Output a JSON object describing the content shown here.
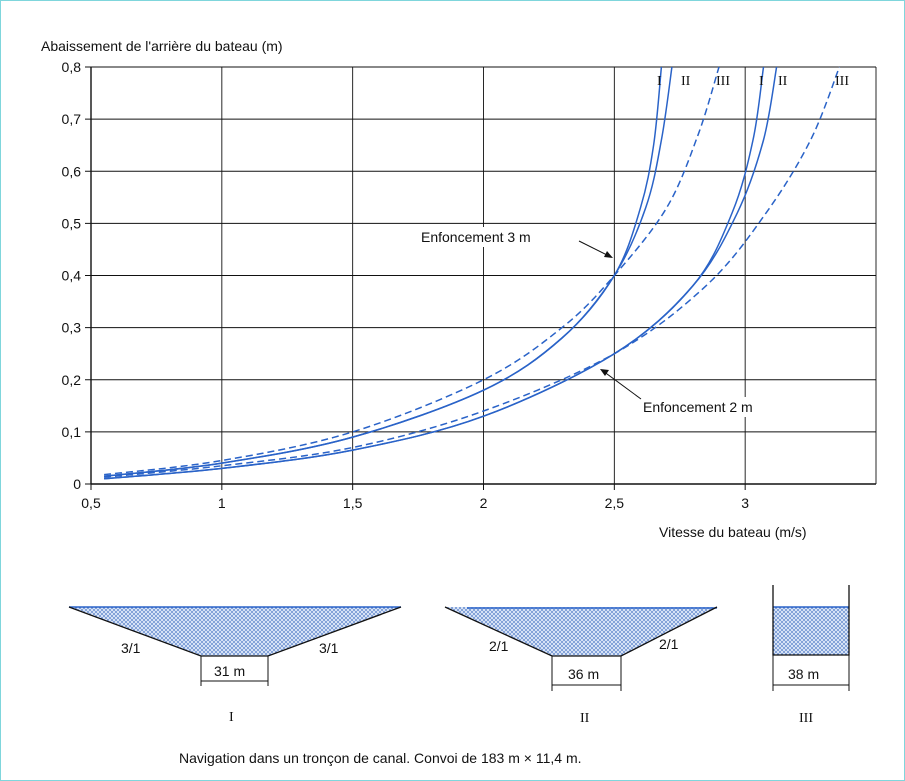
{
  "chart_data": {
    "type": "line",
    "title": "",
    "ylabel": "Abaissement de l'arrière du bateau (m)",
    "xlabel": "Vitesse du bateau (m/s)",
    "xlim": [
      0.5,
      3.5
    ],
    "ylim": [
      0,
      0.8
    ],
    "x_ticks": [
      "0,5",
      "1",
      "1,5",
      "2",
      "2,5",
      "3"
    ],
    "x_tick_values": [
      0.5,
      1,
      1.5,
      2,
      2.5,
      3
    ],
    "y_ticks": [
      "0",
      "0,1",
      "0,2",
      "0,3",
      "0,4",
      "0,5",
      "0,6",
      "0,7",
      "0,8"
    ],
    "y_tick_values": [
      0,
      0.1,
      0.2,
      0.3,
      0.4,
      0.5,
      0.6,
      0.7,
      0.8
    ],
    "grid": true,
    "line_color": "#2a63c8",
    "series": [
      {
        "name": "I",
        "group": "Enfoncement 3 m",
        "dashed": false,
        "x": [
          0.55,
          1,
          1.5,
          2,
          2.3,
          2.5,
          2.6,
          2.65,
          2.68
        ],
        "y": [
          0.015,
          0.04,
          0.09,
          0.18,
          0.28,
          0.4,
          0.53,
          0.65,
          0.8
        ]
      },
      {
        "name": "II",
        "group": "Enfoncement 3 m",
        "dashed": false,
        "x": [
          0.55,
          1,
          1.5,
          2,
          2.3,
          2.5,
          2.62,
          2.68,
          2.72
        ],
        "y": [
          0.015,
          0.04,
          0.09,
          0.18,
          0.28,
          0.4,
          0.53,
          0.66,
          0.8
        ]
      },
      {
        "name": "III",
        "group": "Enfoncement 3 m",
        "dashed": true,
        "x": [
          0.55,
          1,
          1.5,
          2,
          2.3,
          2.5,
          2.7,
          2.82,
          2.9
        ],
        "y": [
          0.018,
          0.045,
          0.1,
          0.2,
          0.3,
          0.4,
          0.53,
          0.67,
          0.8
        ]
      },
      {
        "name": "I",
        "group": "Enfoncement 2 m",
        "dashed": false,
        "x": [
          0.55,
          1,
          1.5,
          2,
          2.5,
          2.8,
          2.95,
          3.03,
          3.07
        ],
        "y": [
          0.01,
          0.03,
          0.065,
          0.13,
          0.25,
          0.38,
          0.52,
          0.66,
          0.8
        ]
      },
      {
        "name": "II",
        "group": "Enfoncement 2 m",
        "dashed": false,
        "x": [
          0.55,
          1,
          1.5,
          2,
          2.5,
          2.8,
          2.97,
          3.07,
          3.12
        ],
        "y": [
          0.01,
          0.03,
          0.065,
          0.13,
          0.25,
          0.38,
          0.52,
          0.66,
          0.8
        ]
      },
      {
        "name": "III",
        "group": "Enfoncement 2 m",
        "dashed": true,
        "x": [
          0.55,
          1,
          1.5,
          2,
          2.5,
          2.85,
          3.08,
          3.25,
          3.36
        ],
        "y": [
          0.013,
          0.035,
          0.07,
          0.14,
          0.25,
          0.38,
          0.52,
          0.66,
          0.8
        ]
      }
    ],
    "series_labels": [
      "I",
      "II",
      "III",
      "I",
      "II",
      "III"
    ],
    "annotations": [
      "Enfoncement 3 m",
      "Enfoncement 2 m"
    ]
  },
  "sections": {
    "I": {
      "slope_left": "3/1",
      "slope_right": "3/1",
      "width": "31 m",
      "label": "I"
    },
    "II": {
      "slope_left": "2/1",
      "slope_right": "2/1",
      "width": "36 m",
      "label": "II"
    },
    "III": {
      "width": "38 m",
      "label": "III"
    }
  },
  "caption": "Navigation dans un tronçon de canal. Convoi de 183 m × 11,4 m.",
  "colors": {
    "water_fill": "#b8cdee",
    "line": "#2a63c8"
  }
}
